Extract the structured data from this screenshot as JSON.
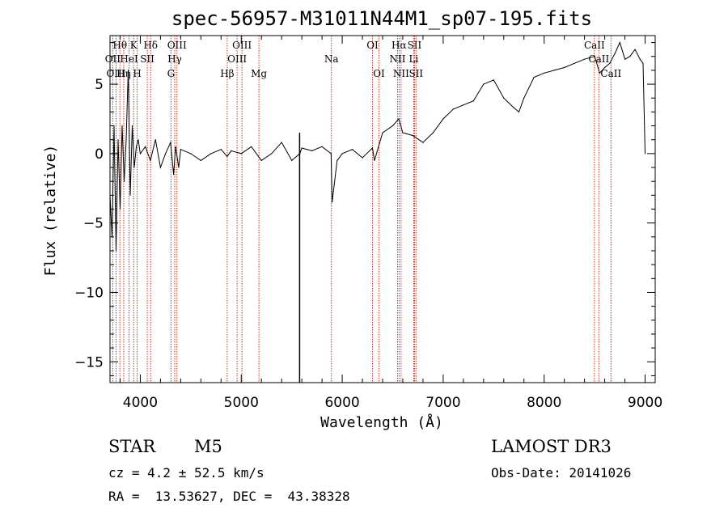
{
  "chart_data": {
    "type": "line",
    "title": "spec-56957-M31011N44M1_sp07-195.fits",
    "xlabel": "Wavelength (Å)",
    "ylabel": "Flux (relative)",
    "xlim": [
      3700,
      9100
    ],
    "ylim": [
      -16.5,
      8.5
    ],
    "xticks": [
      4000,
      5000,
      6000,
      7000,
      8000,
      9000
    ],
    "yticks": [
      -15,
      -10,
      -5,
      0,
      5
    ],
    "grid": false,
    "series": [
      {
        "name": "flux",
        "x": [
          3700,
          3720,
          3740,
          3760,
          3780,
          3800,
          3820,
          3840,
          3860,
          3880,
          3900,
          3920,
          3940,
          3960,
          3980,
          4000,
          4050,
          4100,
          4150,
          4200,
          4250,
          4300,
          4330,
          4350,
          4380,
          4400,
          4500,
          4600,
          4700,
          4800,
          4860,
          4900,
          5000,
          5100,
          5200,
          5300,
          5400,
          5500,
          5580,
          5600,
          5700,
          5800,
          5890,
          5900,
          5950,
          6000,
          6100,
          6200,
          6300,
          6320,
          6400,
          6500,
          6560,
          6600,
          6700,
          6800,
          6900,
          7000,
          7100,
          7200,
          7300,
          7400,
          7500,
          7600,
          7700,
          7750,
          7800,
          7900,
          8000,
          8100,
          8200,
          8300,
          8400,
          8500,
          8550,
          8600,
          8650,
          8700,
          8750,
          8800,
          8850,
          8900,
          8950,
          8980,
          9000
        ],
        "y": [
          -3,
          -6,
          2,
          -7,
          1,
          -4,
          2,
          -2,
          1,
          6,
          -3,
          2,
          -1,
          0.5,
          1,
          0,
          0.5,
          -0.5,
          1,
          -1,
          0,
          0.8,
          -1.5,
          0.5,
          -1,
          0.3,
          0,
          -0.5,
          0,
          0.3,
          -0.2,
          0.2,
          0,
          0.5,
          -0.5,
          0,
          0.8,
          -0.5,
          0,
          0.4,
          0.2,
          0.5,
          0,
          -3.5,
          -0.5,
          0,
          0.3,
          -0.3,
          0.4,
          -0.5,
          1.5,
          2,
          2.5,
          1.5,
          1.3,
          0.8,
          1.5,
          2.5,
          3.2,
          3.5,
          3.8,
          5,
          5.3,
          4,
          3.3,
          3,
          4,
          5.5,
          5.8,
          6,
          6.2,
          6.5,
          6.8,
          7,
          5.8,
          6.2,
          6.5,
          7.2,
          8,
          6.8,
          7,
          7.5,
          6.8,
          6.5,
          0
        ]
      }
    ],
    "emission_lines": [
      {
        "label": "Hθ",
        "x": 3798,
        "row": 1
      },
      {
        "label": "OII",
        "x": 3727,
        "row": 2
      },
      {
        "label": "OIII",
        "x": 3760,
        "row": 3
      },
      {
        "label": "K",
        "x": 3934,
        "row": 1
      },
      {
        "label": "HeI",
        "x": 3889,
        "row": 2
      },
      {
        "label": "Hη",
        "x": 3836,
        "row": 3
      },
      {
        "label": "SII",
        "x": 4069,
        "row": 2
      },
      {
        "label": "H",
        "x": 3969,
        "row": 3
      },
      {
        "label": "Hδ",
        "x": 4102,
        "row": 1
      },
      {
        "label": "OIII",
        "x": 4363,
        "row": 1
      },
      {
        "label": "Hγ",
        "x": 4341,
        "row": 2
      },
      {
        "label": "G",
        "x": 4304,
        "row": 3
      },
      {
        "label": "OIII",
        "x": 5007,
        "row": 1
      },
      {
        "label": "OIII",
        "x": 4959,
        "row": 2
      },
      {
        "label": "Hβ",
        "x": 4861,
        "row": 3
      },
      {
        "label": "Mg",
        "x": 5175,
        "row": 3
      },
      {
        "label": "Na",
        "x": 5893,
        "row": 2
      },
      {
        "label": "OI",
        "x": 6300,
        "row": 1
      },
      {
        "label": "OI",
        "x": 6364,
        "row": 3
      },
      {
        "label": "Hα",
        "x": 6563,
        "row": 1
      },
      {
        "label": "NII",
        "x": 6548,
        "row": 2
      },
      {
        "label": "NII",
        "x": 6583,
        "row": 3
      },
      {
        "label": "SII",
        "x": 6716,
        "row": 1
      },
      {
        "label": "Li",
        "x": 6708,
        "row": 2
      },
      {
        "label": "SII",
        "x": 6731,
        "row": 3
      },
      {
        "label": "CaII",
        "x": 8498,
        "row": 1
      },
      {
        "label": "CaII",
        "x": 8542,
        "row": 2
      },
      {
        "label": "CaII",
        "x": 8662,
        "row": 3
      }
    ],
    "spike_line": {
      "x": 5578,
      "y_bottom": -16.5,
      "y_top": 1.5
    }
  },
  "info": {
    "class_label": "STAR",
    "subclass": "M5",
    "survey": "LAMOST DR3",
    "cz": "cz = 4.2 ± 52.5 km/s",
    "obs_date": "Obs-Date: 20141026",
    "radec": "RA =  13.53627, DEC =  43.38328"
  }
}
